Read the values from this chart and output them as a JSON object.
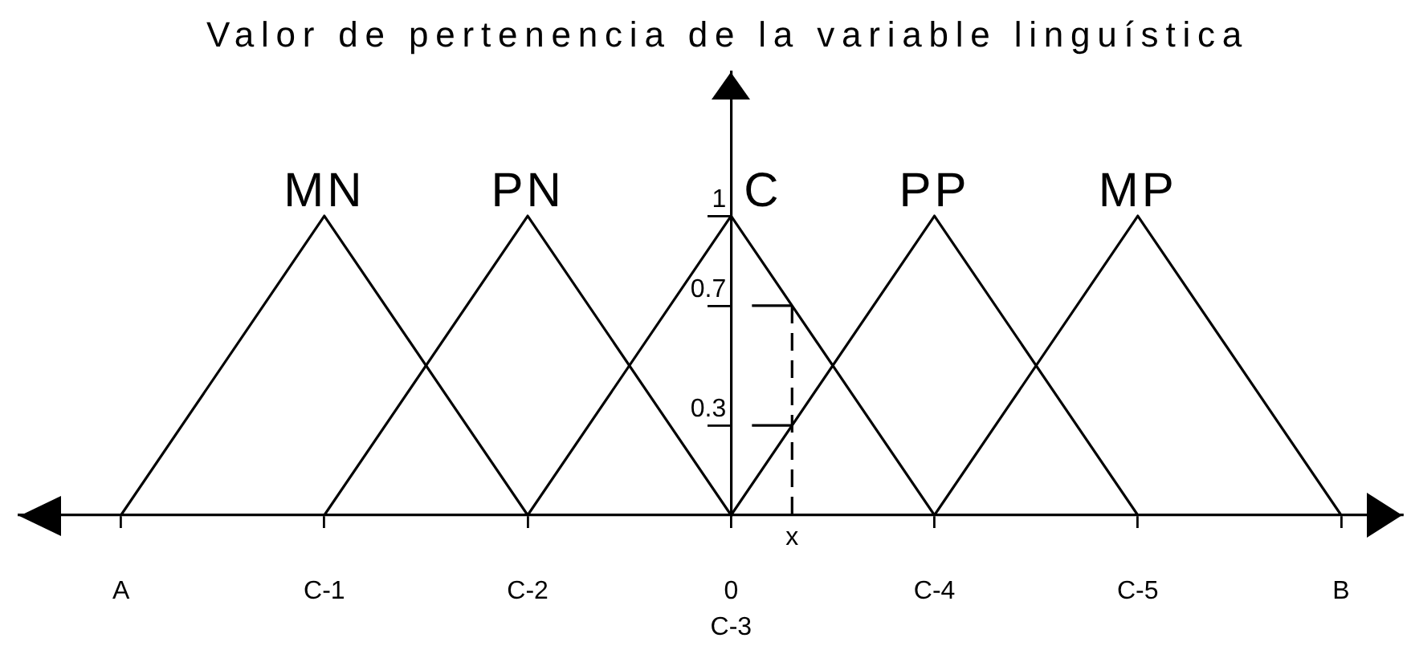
{
  "chart_data": {
    "type": "line",
    "title": "Valor de pertenencia de la variable linguística",
    "categories": [
      "A",
      "C-1",
      "C-2",
      "0",
      "C-4",
      "C-5",
      "B"
    ],
    "series": [
      {
        "name": "MN",
        "color": "#000000",
        "values": [
          0,
          1,
          0,
          null,
          null,
          null,
          null
        ]
      },
      {
        "name": "PN",
        "color": "#000000",
        "values": [
          null,
          0,
          1,
          0,
          null,
          null,
          null
        ]
      },
      {
        "name": "C",
        "color": "#000000",
        "values": [
          null,
          null,
          0,
          1,
          0,
          null,
          null
        ]
      },
      {
        "name": "PP",
        "color": "#000000",
        "values": [
          null,
          null,
          null,
          0,
          1,
          0,
          null
        ]
      },
      {
        "name": "MP",
        "color": "#000000",
        "values": [
          null,
          null,
          null,
          null,
          0,
          1,
          0
        ]
      }
    ],
    "ylim": [
      0,
      1.48
    ],
    "yticks": [
      0.3,
      0.7,
      1
    ],
    "annotations": [
      {
        "text": "x",
        "y": 0.7
      },
      "C-3"
    ],
    "grid": false,
    "legend": false,
    "marker": "none",
    "line_style": "solid"
  }
}
